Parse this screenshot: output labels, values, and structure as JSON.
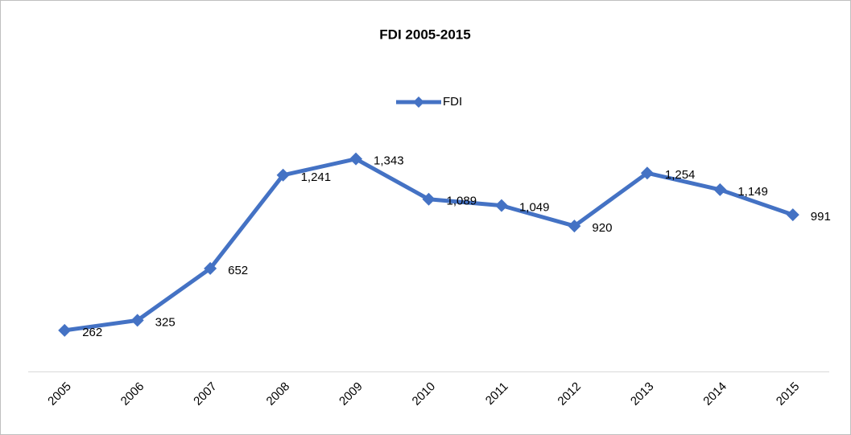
{
  "chart_data": {
    "type": "line",
    "title": "FDI 2005-2015",
    "categories": [
      "2005",
      "2006",
      "2007",
      "2008",
      "2009",
      "2010",
      "2011",
      "2012",
      "2013",
      "2014",
      "2015"
    ],
    "series": [
      {
        "name": "FDI",
        "color": "#4472c4",
        "values": [
          262,
          325,
          652,
          1241,
          1343,
          1089,
          1049,
          920,
          1254,
          1149,
          991
        ],
        "value_labels": [
          "262",
          "325",
          "652",
          "1,241",
          "1,343",
          "1,089",
          "1,049",
          "920",
          "1,254",
          "1,149",
          "991"
        ]
      }
    ],
    "ylim": [
      0,
      1600
    ],
    "legend": "top"
  }
}
